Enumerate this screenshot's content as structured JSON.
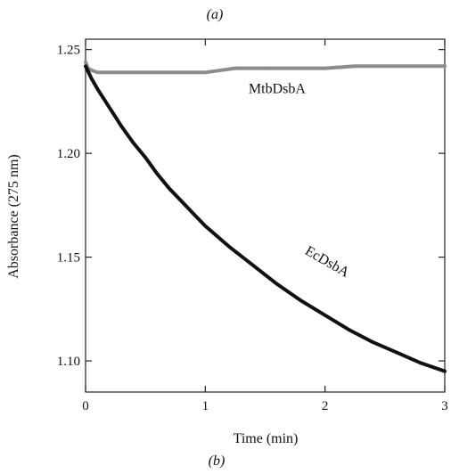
{
  "panel_labels": {
    "top": "(a)",
    "bottom": "(b)"
  },
  "chart_data": {
    "type": "line",
    "title": "",
    "xlabel": "Time (min)",
    "ylabel": "Absorbance (275 nm)",
    "xlim": [
      0,
      3
    ],
    "ylim": [
      1.085,
      1.255
    ],
    "xticks": [
      0,
      1,
      2,
      3
    ],
    "xtick_labels": [
      "0",
      "1",
      "2",
      "3"
    ],
    "yticks": [
      1.1,
      1.15,
      1.2,
      1.25
    ],
    "ytick_labels": [
      "1.10",
      "1.15",
      "1.20",
      "1.25"
    ],
    "grid": false,
    "legend": "none",
    "series": [
      {
        "name": "MtbDsbA",
        "color": "#8c8c8c",
        "x": [
          0,
          0.02,
          0.05,
          0.1,
          0.2,
          0.3,
          0.5,
          0.75,
          1.0,
          1.25,
          1.5,
          1.75,
          2.0,
          2.25,
          2.5,
          2.75,
          3.0
        ],
        "y": [
          1.244,
          1.241,
          1.24,
          1.239,
          1.239,
          1.239,
          1.239,
          1.239,
          1.239,
          1.241,
          1.241,
          1.241,
          1.241,
          1.242,
          1.242,
          1.242,
          1.242
        ]
      },
      {
        "name": "EcDsbA",
        "color": "#111111",
        "x": [
          0,
          0.05,
          0.1,
          0.2,
          0.3,
          0.4,
          0.5,
          0.6,
          0.7,
          0.8,
          0.9,
          1.0,
          1.2,
          1.4,
          1.6,
          1.8,
          2.0,
          2.2,
          2.4,
          2.6,
          2.8,
          3.0
        ],
        "y": [
          1.242,
          1.236,
          1.231,
          1.222,
          1.213,
          1.205,
          1.198,
          1.19,
          1.183,
          1.177,
          1.171,
          1.165,
          1.155,
          1.146,
          1.137,
          1.129,
          1.122,
          1.115,
          1.109,
          1.104,
          1.099,
          1.095
        ]
      }
    ],
    "annotations": [
      {
        "text": "MtbDsbA",
        "x": 1.6,
        "y": 1.229,
        "rotation": 0
      },
      {
        "text": "EcDsbA",
        "x": 2.0,
        "y": 1.146,
        "rotation": 30
      }
    ]
  }
}
